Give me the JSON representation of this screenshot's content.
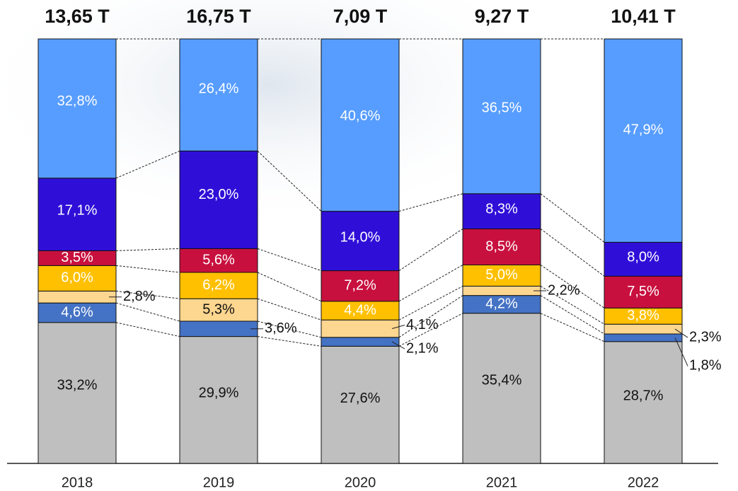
{
  "chart_data": {
    "type": "bar",
    "stacked": true,
    "categories": [
      "2018",
      "2019",
      "2020",
      "2021",
      "2022"
    ],
    "totals": [
      {
        "value": 13.65,
        "label": "13,65 T"
      },
      {
        "value": 16.75,
        "label": "16,75 T"
      },
      {
        "value": 7.09,
        "label": "7,09 T"
      },
      {
        "value": 9.27,
        "label": "9,27 T"
      },
      {
        "value": 10.41,
        "label": "10,41 T"
      }
    ],
    "series": [
      {
        "color": "#bfbfbf",
        "values": [
          33.2,
          29.9,
          27.6,
          35.4,
          28.7
        ],
        "value_labels": [
          "33,2%",
          "29,9%",
          "27,6%",
          "35,4%",
          "28,7%"
        ]
      },
      {
        "color": "#4472c4",
        "values": [
          4.6,
          3.6,
          2.1,
          4.2,
          1.8
        ],
        "value_labels": [
          "4,6%",
          "3,6%",
          "2,1%",
          "4,2%",
          "1,8%"
        ]
      },
      {
        "color": "#fdd68f",
        "values": [
          2.8,
          5.3,
          4.1,
          2.2,
          2.3
        ],
        "value_labels": [
          "2,8%",
          "5,3%",
          "4,1%",
          "2,2%",
          "2,3%"
        ]
      },
      {
        "color": "#ffc000",
        "values": [
          6.0,
          6.2,
          4.4,
          5.0,
          3.8
        ],
        "value_labels": [
          "6,0%",
          "6,2%",
          "4,4%",
          "5,0%",
          "3,8%"
        ]
      },
      {
        "color": "#c8103e",
        "values": [
          3.5,
          5.6,
          7.2,
          8.5,
          7.5
        ],
        "value_labels": [
          "3,5%",
          "5,6%",
          "7,2%",
          "8,5%",
          "7,5%"
        ]
      },
      {
        "color": "#2f0fd8",
        "values": [
          17.1,
          23.0,
          14.0,
          8.3,
          8.0
        ],
        "value_labels": [
          "17,1%",
          "23,0%",
          "14,0%",
          "8,3%",
          "8,0%"
        ]
      },
      {
        "color": "#579dff",
        "values": [
          32.8,
          26.4,
          40.6,
          36.5,
          47.9
        ],
        "value_labels": [
          "32,8%",
          "26,4%",
          "40,6%",
          "36,5%",
          "47,9%"
        ]
      }
    ]
  }
}
